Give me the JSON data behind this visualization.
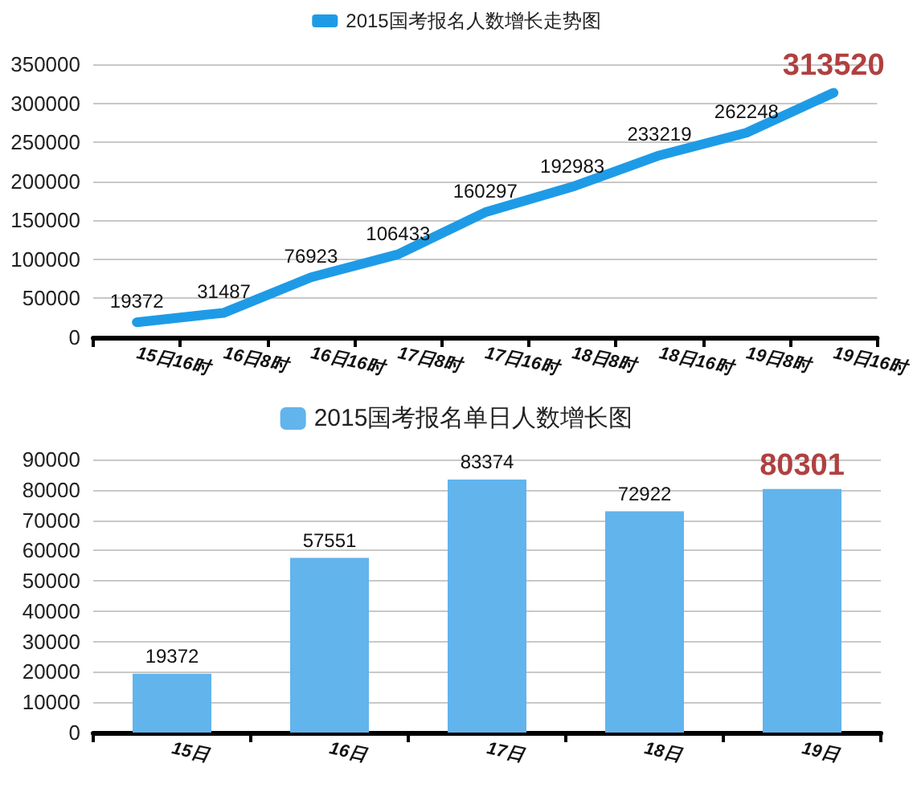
{
  "chart_data": [
    {
      "type": "line",
      "categories": [
        "15日16时",
        "16日8时",
        "16日16时",
        "17日8时",
        "17日16时",
        "18日8时",
        "18日16时",
        "19日8时",
        "19日16时"
      ],
      "series": [
        {
          "name": "2015国考报名人数增长走势图",
          "color": "#1e9be6",
          "values": [
            19372,
            31487,
            76923,
            106433,
            160297,
            192983,
            233219,
            262248,
            313520
          ]
        }
      ],
      "ylim": [
        0,
        350000
      ],
      "yticks": [
        0,
        50000,
        100000,
        150000,
        200000,
        250000,
        300000,
        350000
      ],
      "grid": "y",
      "legend": "top",
      "data_labels": true,
      "marker": "none"
    },
    {
      "type": "bar",
      "categories": [
        "15日",
        "16日",
        "17日",
        "18日",
        "19日"
      ],
      "series": [
        {
          "name": "2015国考报名单日人数增长图",
          "color": "#62b4ec",
          "values": [
            19372,
            57551,
            83374,
            72922,
            80301
          ]
        }
      ],
      "ylim": [
        0,
        90000
      ],
      "yticks": [
        0,
        10000,
        20000,
        30000,
        40000,
        50000,
        60000,
        70000,
        80000,
        90000
      ],
      "grid": "y",
      "legend": "top",
      "data_labels": true
    }
  ]
}
